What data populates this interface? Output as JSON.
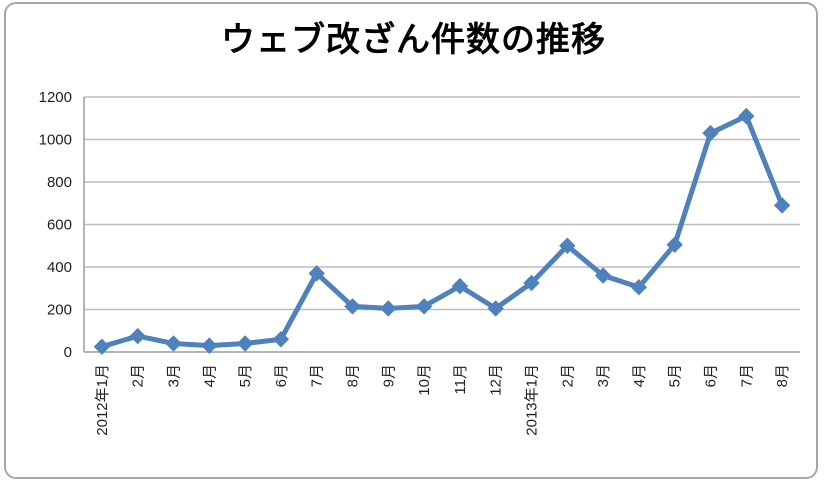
{
  "chart_data": {
    "type": "line",
    "title": "ウェブ改ざん件数の推移",
    "categories": [
      "2012年1月",
      "2月",
      "3月",
      "4月",
      "5月",
      "6月",
      "7月",
      "8月",
      "9月",
      "10月",
      "11月",
      "12月",
      "2013年1月",
      "2月",
      "3月",
      "4月",
      "5月",
      "6月",
      "7月",
      "8月"
    ],
    "series": [
      {
        "name": "ウェブ改ざん件数",
        "values": [
          25,
          75,
          40,
          30,
          40,
          60,
          370,
          215,
          205,
          215,
          310,
          205,
          325,
          500,
          360,
          305,
          505,
          1030,
          1110,
          690
        ]
      }
    ],
    "xlabel": "",
    "ylabel": "",
    "ylim": [
      0,
      1200
    ],
    "ytick_step": 200,
    "yticks": [
      "0",
      "200",
      "400",
      "600",
      "800",
      "1000",
      "1200"
    ],
    "grid": true,
    "legend_position": "none",
    "marker": "diamond",
    "colors": {
      "line": "#4F81BD",
      "gridline": "#bdbdbd",
      "axis_line": "#9c9c9c",
      "tick_text": "#1f1f1f",
      "frame_border": "#a6a6a6",
      "background": "#ffffff"
    }
  }
}
